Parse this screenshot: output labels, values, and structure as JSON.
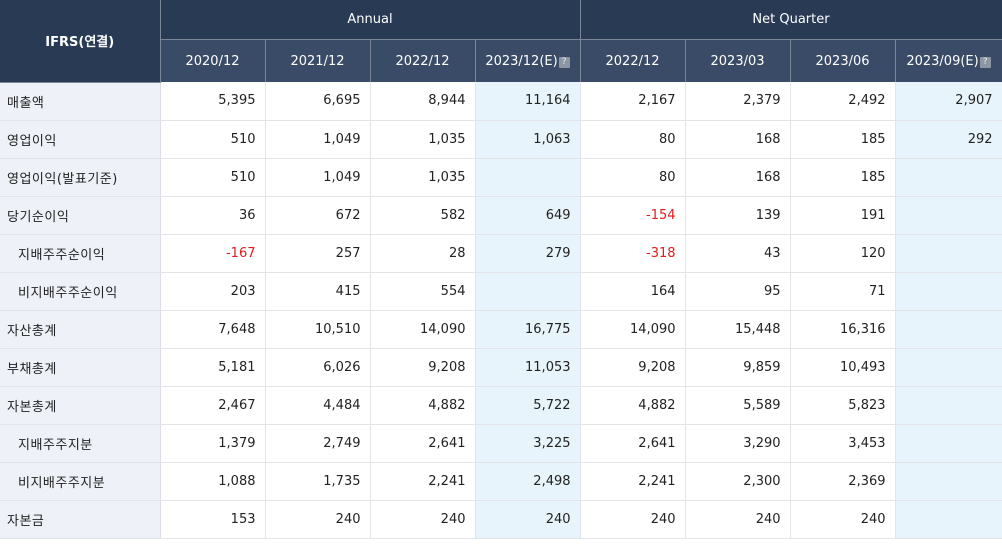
{
  "header": {
    "row_label": "IFRS(연결)",
    "annual_label": "Annual",
    "quarter_label": "Net Quarter",
    "annual_periods": [
      {
        "label": "2020/12",
        "estimate": false
      },
      {
        "label": "2021/12",
        "estimate": false
      },
      {
        "label": "2022/12",
        "estimate": false
      },
      {
        "label": "2023/12(E)",
        "estimate": true
      }
    ],
    "quarter_periods": [
      {
        "label": "2022/12",
        "estimate": false
      },
      {
        "label": "2023/03",
        "estimate": false
      },
      {
        "label": "2023/06",
        "estimate": false
      },
      {
        "label": "2023/09(E)",
        "estimate": true
      }
    ],
    "info_icon": "?"
  },
  "rows": [
    {
      "label": "매출액",
      "sub": false,
      "values": [
        "5,395",
        "6,695",
        "8,944",
        "11,164",
        "2,167",
        "2,379",
        "2,492",
        "2,907"
      ]
    },
    {
      "label": "영업이익",
      "sub": false,
      "values": [
        "510",
        "1,049",
        "1,035",
        "1,063",
        "80",
        "168",
        "185",
        "292"
      ]
    },
    {
      "label": "영업이익(발표기준)",
      "sub": false,
      "values": [
        "510",
        "1,049",
        "1,035",
        "",
        "80",
        "168",
        "185",
        ""
      ]
    },
    {
      "label": "당기순이익",
      "sub": false,
      "values": [
        "36",
        "672",
        "582",
        "649",
        "-154",
        "139",
        "191",
        ""
      ]
    },
    {
      "label": "지배주주순이익",
      "sub": true,
      "values": [
        "-167",
        "257",
        "28",
        "279",
        "-318",
        "43",
        "120",
        ""
      ]
    },
    {
      "label": "비지배주주순이익",
      "sub": true,
      "values": [
        "203",
        "415",
        "554",
        "",
        "164",
        "95",
        "71",
        ""
      ]
    },
    {
      "label": "자산총계",
      "sub": false,
      "values": [
        "7,648",
        "10,510",
        "14,090",
        "16,775",
        "14,090",
        "15,448",
        "16,316",
        ""
      ]
    },
    {
      "label": "부채총계",
      "sub": false,
      "values": [
        "5,181",
        "6,026",
        "9,208",
        "11,053",
        "9,208",
        "9,859",
        "10,493",
        ""
      ]
    },
    {
      "label": "자본총계",
      "sub": false,
      "values": [
        "2,467",
        "4,484",
        "4,882",
        "5,722",
        "4,882",
        "5,589",
        "5,823",
        ""
      ]
    },
    {
      "label": "지배주주지분",
      "sub": true,
      "values": [
        "1,379",
        "2,749",
        "2,641",
        "3,225",
        "2,641",
        "3,290",
        "3,453",
        ""
      ]
    },
    {
      "label": "비지배주주지분",
      "sub": true,
      "values": [
        "1,088",
        "1,735",
        "2,241",
        "2,498",
        "2,241",
        "2,300",
        "2,369",
        ""
      ]
    },
    {
      "label": "자본금",
      "sub": false,
      "values": [
        "153",
        "240",
        "240",
        "240",
        "240",
        "240",
        "240",
        ""
      ]
    }
  ],
  "colors": {
    "header_dark": "#283a54",
    "header_mid": "#394b66",
    "label_bg": "#eef2f8",
    "estimate_bg": "#e8f4fb",
    "negative": "#e01d1d"
  }
}
